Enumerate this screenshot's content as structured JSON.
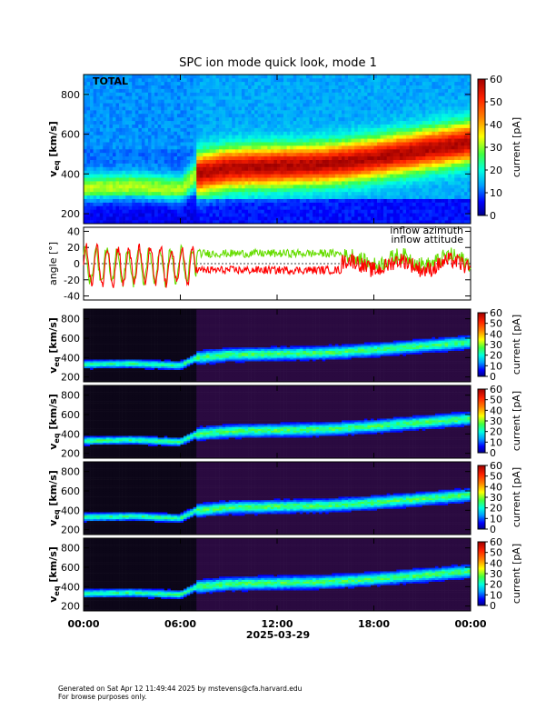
{
  "title": "SPC ion mode quick look, mode 1",
  "date_label": "2025-03-29",
  "x_ticks": [
    "00:00",
    "06:00",
    "12:00",
    "18:00",
    "00:00"
  ],
  "footer": {
    "line1": "Generated on Sat Apr 12 11:49:44 2025 by mstevens@cfa.harvard.edu",
    "line2": "For browse purposes only."
  },
  "colorbar_label": "current [pA]",
  "chart_data": [
    {
      "type": "heatmap",
      "panel": "total",
      "annotation": "TOTAL",
      "ylabel": "v_eq [km/s]",
      "ylabel_main": "v",
      "ylabel_sub": "eq",
      "ylabel_unit": "[km/s]",
      "ylim": [
        150,
        900
      ],
      "yticks": [
        200,
        400,
        600,
        800
      ],
      "ytick_labels": [
        "200",
        "400",
        "600",
        "800"
      ],
      "colorbar_ticks": [
        "0",
        "10",
        "20",
        "30",
        "40",
        "50",
        "60"
      ],
      "colorbar_range": [
        0,
        60
      ],
      "time_hours": [
        0,
        3,
        6,
        7,
        9,
        12,
        15,
        18,
        21,
        24
      ],
      "peak_speed_kms": [
        330,
        340,
        320,
        400,
        430,
        440,
        450,
        480,
        520,
        560
      ]
    },
    {
      "type": "line",
      "panel": "angle",
      "ylabel": "angle [°]",
      "ylim": [
        -45,
        45
      ],
      "yticks": [
        -40,
        -20,
        0,
        20,
        40
      ],
      "ytick_labels": [
        "-40",
        "-20",
        "0",
        "20",
        "40"
      ],
      "series": [
        {
          "name": "inflow azimuth",
          "color": "#ff0000"
        },
        {
          "name": "inflow attitude",
          "color": "#66dd00"
        }
      ]
    },
    {
      "type": "heatmap",
      "panel": "cup-1",
      "ylim": [
        150,
        900
      ],
      "ytick_labels": [
        "200",
        "400",
        "600",
        "800"
      ],
      "colorbar_ticks": [
        "0",
        "10",
        "20",
        "30",
        "40",
        "50",
        "60"
      ]
    },
    {
      "type": "heatmap",
      "panel": "cup-2",
      "ylim": [
        150,
        900
      ],
      "ytick_labels": [
        "200",
        "400",
        "600",
        "800"
      ],
      "colorbar_ticks": [
        "0",
        "10",
        "20",
        "30",
        "40",
        "50",
        "60"
      ]
    },
    {
      "type": "heatmap",
      "panel": "cup-3",
      "ylim": [
        150,
        900
      ],
      "ytick_labels": [
        "200",
        "400",
        "600",
        "800"
      ],
      "colorbar_ticks": [
        "0",
        "10",
        "20",
        "30",
        "40",
        "50",
        "60"
      ]
    },
    {
      "type": "heatmap",
      "panel": "cup-4",
      "ylim": [
        150,
        900
      ],
      "ytick_labels": [
        "200",
        "400",
        "600",
        "800"
      ],
      "colorbar_ticks": [
        "0",
        "10",
        "20",
        "30",
        "40",
        "50",
        "60"
      ]
    }
  ]
}
